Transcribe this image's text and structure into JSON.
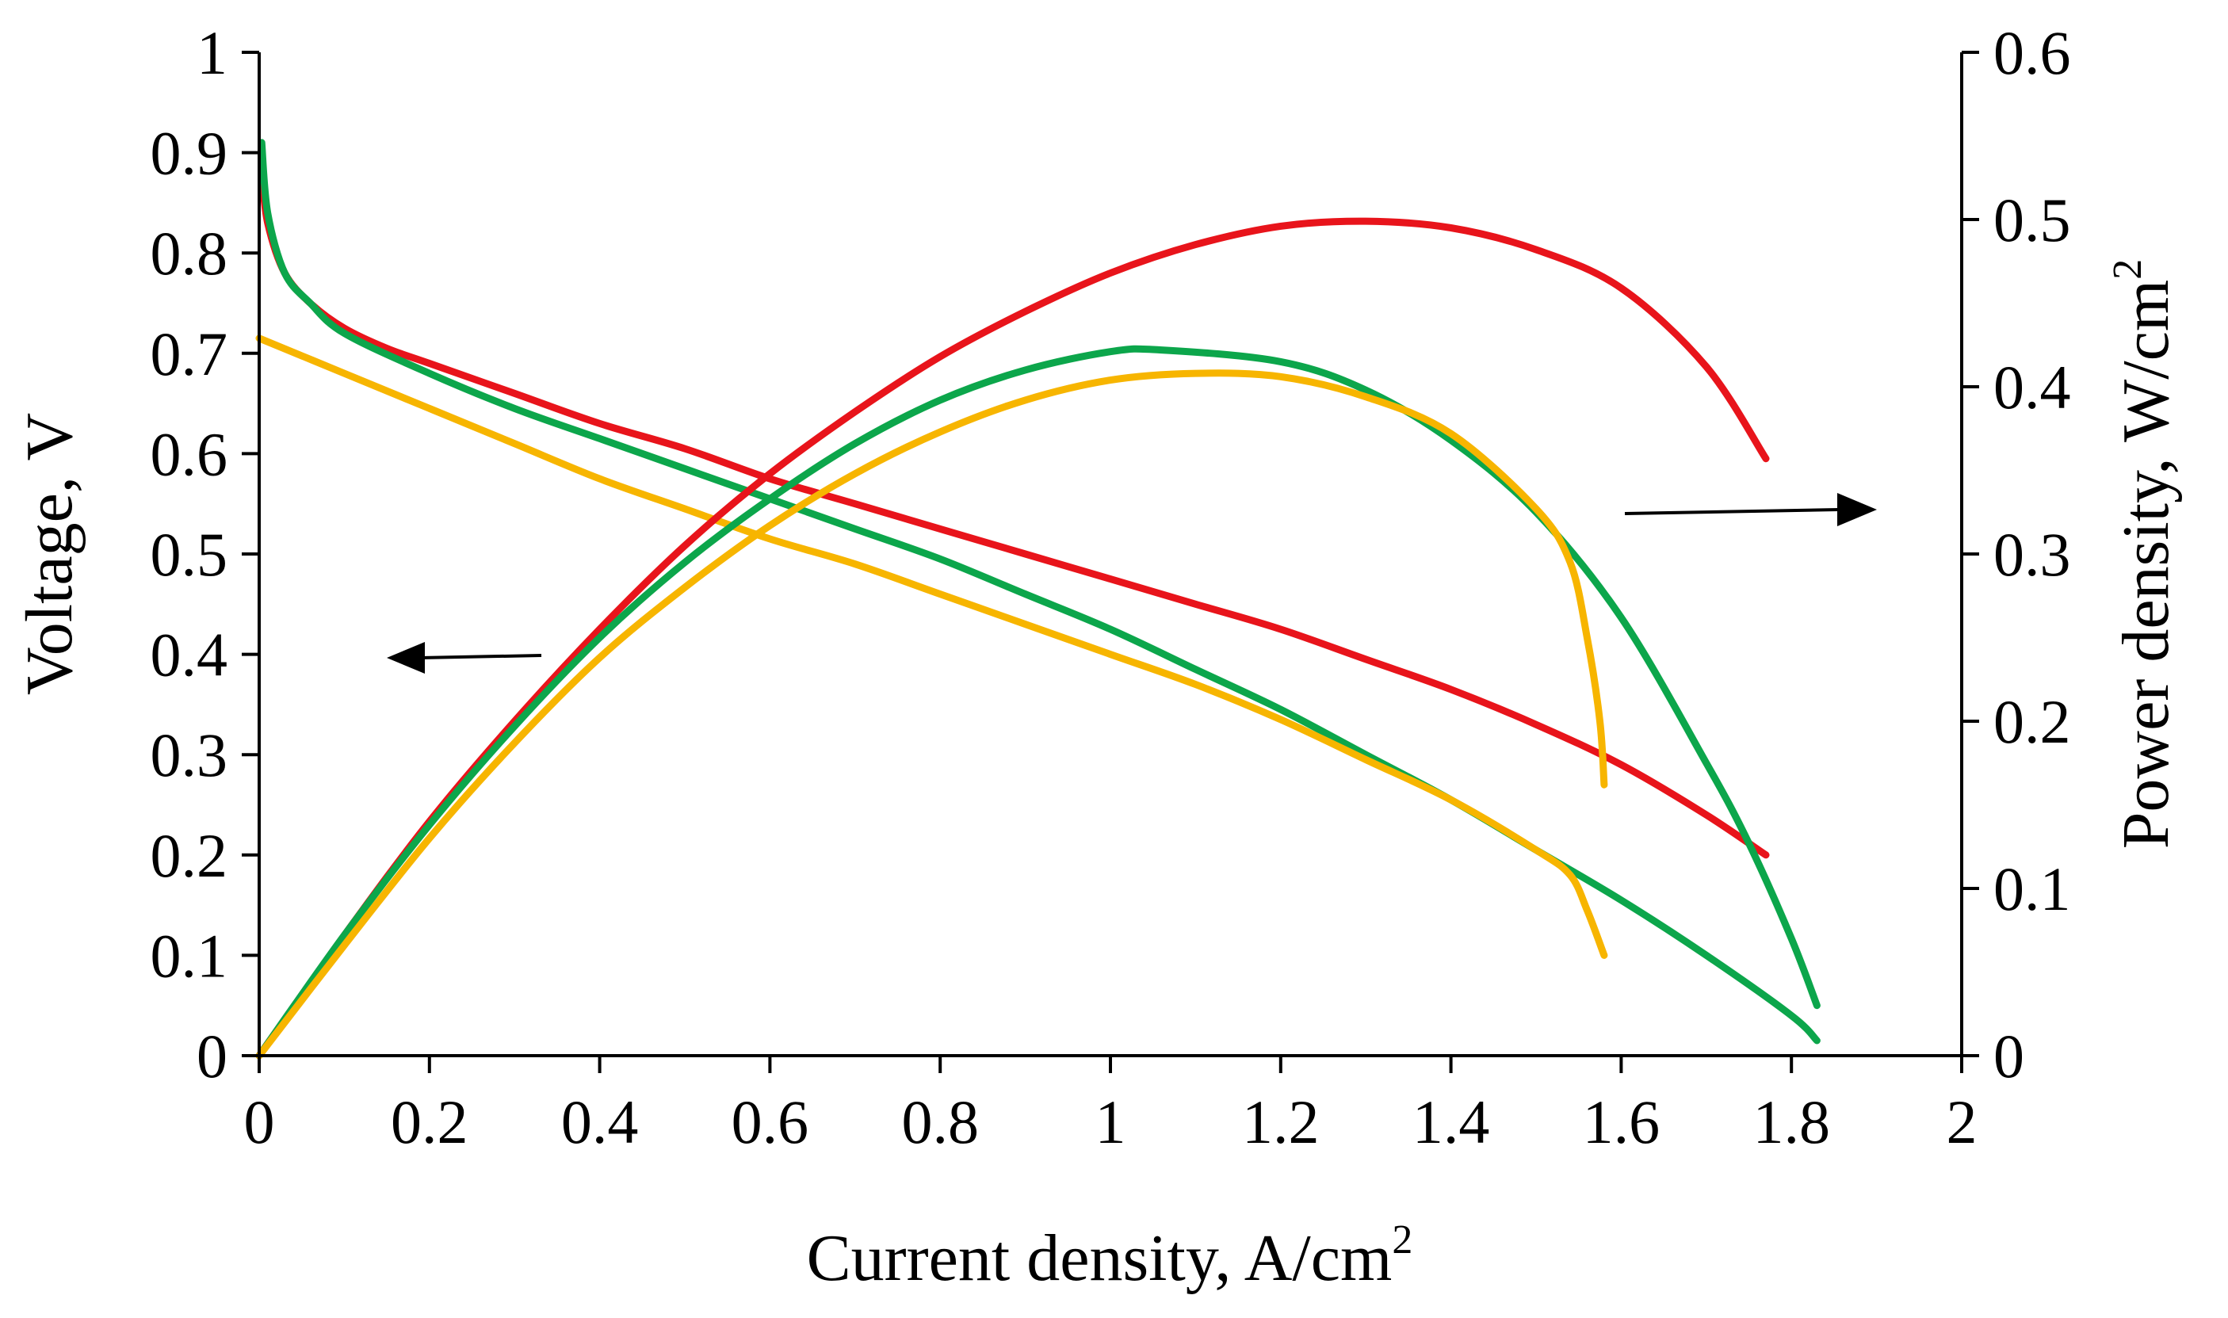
{
  "chart_data": {
    "type": "line",
    "title": "",
    "xlabel": "Current density, A/cm",
    "xlabel_sup": "2",
    "ylabel_left": "Voltage, V",
    "ylabel_right": "Power density, W/cm",
    "ylabel_right_sup": "2",
    "xlim": [
      0,
      2
    ],
    "ylim_left": [
      0,
      1
    ],
    "ylim_right": [
      0,
      0.6
    ],
    "x_ticks": [
      "0",
      "0.2",
      "0.4",
      "0.6",
      "0.8",
      "1",
      "1.2",
      "1.4",
      "1.6",
      "1.8",
      "2"
    ],
    "y_left_ticks": [
      "0",
      "0.1",
      "0.2",
      "0.3",
      "0.4",
      "0.5",
      "0.6",
      "0.7",
      "0.8",
      "0.9",
      "1"
    ],
    "y_right_ticks": [
      "0",
      "0.1",
      "0.2",
      "0.3",
      "0.4",
      "0.5",
      "0.6"
    ],
    "grid": false,
    "annotations": [
      {
        "type": "arrow",
        "direction": "left",
        "refers_to": "Voltage axis"
      },
      {
        "type": "arrow",
        "direction": "right",
        "refers_to": "Power density axis"
      }
    ],
    "series": [
      {
        "name": "red-voltage",
        "color": "#e8141b",
        "axis": "left",
        "x": [
          0.003,
          0.01,
          0.03,
          0.06,
          0.1,
          0.15,
          0.2,
          0.3,
          0.4,
          0.5,
          0.6,
          0.7,
          0.8,
          0.9,
          1.0,
          1.1,
          1.2,
          1.3,
          1.4,
          1.5,
          1.6,
          1.7,
          1.77
        ],
        "y": [
          0.88,
          0.83,
          0.78,
          0.75,
          0.725,
          0.705,
          0.69,
          0.66,
          0.63,
          0.605,
          0.575,
          0.55,
          0.525,
          0.5,
          0.475,
          0.45,
          0.425,
          0.395,
          0.365,
          0.33,
          0.29,
          0.24,
          0.2
        ]
      },
      {
        "name": "green-voltage",
        "color": "#0ca64b",
        "axis": "left",
        "x": [
          0.003,
          0.01,
          0.03,
          0.06,
          0.1,
          0.2,
          0.3,
          0.4,
          0.5,
          0.6,
          0.7,
          0.8,
          0.9,
          1.0,
          1.1,
          1.2,
          1.3,
          1.4,
          1.5,
          1.6,
          1.7,
          1.8,
          1.83
        ],
        "y": [
          0.91,
          0.84,
          0.78,
          0.75,
          0.72,
          0.68,
          0.645,
          0.615,
          0.585,
          0.555,
          0.525,
          0.495,
          0.46,
          0.425,
          0.385,
          0.345,
          0.3,
          0.255,
          0.205,
          0.155,
          0.1,
          0.04,
          0.015
        ]
      },
      {
        "name": "yellow-voltage",
        "color": "#f7b500",
        "axis": "left",
        "x": [
          0.0,
          0.1,
          0.2,
          0.3,
          0.4,
          0.5,
          0.6,
          0.7,
          0.8,
          0.9,
          1.0,
          1.1,
          1.2,
          1.3,
          1.4,
          1.5,
          1.54,
          1.56,
          1.58
        ],
        "y": [
          0.715,
          0.68,
          0.645,
          0.61,
          0.575,
          0.545,
          0.515,
          0.49,
          0.46,
          0.43,
          0.4,
          0.37,
          0.335,
          0.295,
          0.255,
          0.205,
          0.18,
          0.145,
          0.1
        ]
      },
      {
        "name": "red-power",
        "color": "#e8141b",
        "axis": "right",
        "x": [
          0.0,
          0.1,
          0.2,
          0.3,
          0.4,
          0.5,
          0.6,
          0.7,
          0.8,
          0.9,
          1.0,
          1.1,
          1.2,
          1.3,
          1.4,
          1.5,
          1.6,
          1.7,
          1.77
        ],
        "y": [
          0.0,
          0.072,
          0.14,
          0.2,
          0.255,
          0.305,
          0.348,
          0.385,
          0.418,
          0.445,
          0.468,
          0.485,
          0.496,
          0.499,
          0.495,
          0.482,
          0.459,
          0.412,
          0.357
        ]
      },
      {
        "name": "green-power",
        "color": "#0ca64b",
        "axis": "right",
        "x": [
          0.0,
          0.1,
          0.2,
          0.3,
          0.4,
          0.5,
          0.6,
          0.7,
          0.8,
          0.9,
          1.0,
          1.06,
          1.2,
          1.3,
          1.4,
          1.5,
          1.6,
          1.7,
          1.75,
          1.8,
          1.83
        ],
        "y": [
          0.0,
          0.072,
          0.138,
          0.197,
          0.25,
          0.295,
          0.333,
          0.366,
          0.392,
          0.41,
          0.421,
          0.422,
          0.415,
          0.398,
          0.368,
          0.325,
          0.262,
          0.175,
          0.127,
          0.07,
          0.03
        ]
      },
      {
        "name": "yellow-power",
        "color": "#f7b500",
        "axis": "right",
        "x": [
          0.0,
          0.1,
          0.2,
          0.3,
          0.4,
          0.5,
          0.6,
          0.7,
          0.8,
          0.9,
          1.0,
          1.1,
          1.2,
          1.3,
          1.4,
          1.5,
          1.54,
          1.56,
          1.575,
          1.58
        ],
        "y": [
          0.0,
          0.066,
          0.13,
          0.187,
          0.238,
          0.28,
          0.317,
          0.348,
          0.373,
          0.392,
          0.404,
          0.408,
          0.406,
          0.394,
          0.372,
          0.327,
          0.295,
          0.25,
          0.2,
          0.162
        ]
      }
    ]
  }
}
